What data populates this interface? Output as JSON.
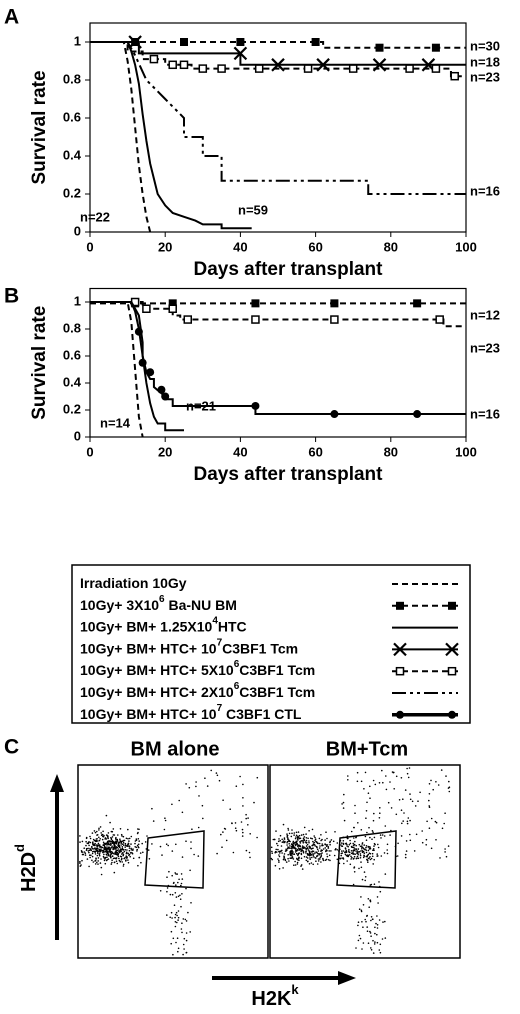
{
  "chart_data": [
    {
      "type": "line",
      "panel": "A",
      "y_label": "Survival rate",
      "x_label": "Days after transplant",
      "color": "#000000",
      "xlim": [
        0,
        100
      ],
      "ylim": [
        0,
        1.1
      ],
      "xticks": [
        0,
        20,
        40,
        60,
        80,
        100
      ],
      "yticks": [
        0,
        0.2,
        0.4,
        0.6,
        0.8,
        1
      ],
      "series": [
        {
          "style": "dash",
          "label": "n=22",
          "x": [
            0,
            9,
            10,
            11,
            12,
            13,
            14,
            15,
            16
          ],
          "values": [
            1,
            1,
            0.9,
            0.75,
            0.55,
            0.35,
            0.2,
            0.08,
            0
          ]
        },
        {
          "style": "dash-square",
          "label": "n=30",
          "x": [
            0,
            62,
            62,
            100
          ],
          "values": [
            1,
            1,
            0.97,
            0.97
          ],
          "markers": {
            "x": [
              12,
              25,
              40,
              60,
              77,
              92
            ],
            "values": [
              1,
              1,
              1,
              1,
              0.97,
              0.97
            ]
          }
        },
        {
          "style": "solid",
          "label": "n=59",
          "x": [
            0,
            10,
            11,
            12,
            13,
            14,
            15,
            16,
            17,
            18,
            20,
            22,
            25,
            28,
            30,
            35,
            35,
            43
          ],
          "values": [
            1,
            1,
            0.95,
            0.88,
            0.78,
            0.62,
            0.48,
            0.36,
            0.28,
            0.2,
            0.14,
            0.1,
            0.08,
            0.06,
            0.04,
            0.04,
            0.02,
            0.02
          ]
        },
        {
          "style": "solid-x",
          "label": "n=18",
          "x": [
            0,
            13,
            13,
            40,
            40,
            100
          ],
          "values": [
            1,
            1,
            0.94,
            0.94,
            0.88,
            0.88
          ],
          "markers": {
            "x": [
              12,
              40,
              50,
              62,
              77,
              90
            ],
            "values": [
              1,
              0.94,
              0.88,
              0.88,
              0.88,
              0.88
            ]
          }
        },
        {
          "style": "dash-open",
          "label": "n=23",
          "x": [
            0,
            10,
            10,
            14,
            14,
            20,
            20,
            27,
            27,
            96,
            96,
            100
          ],
          "values": [
            1,
            1,
            0.95,
            0.95,
            0.91,
            0.91,
            0.88,
            0.88,
            0.86,
            0.86,
            0.82,
            0.82
          ],
          "markers": {
            "x": [
              17,
              22,
              25,
              30,
              35,
              45,
              58,
              70,
              85,
              92,
              97
            ],
            "values": [
              0.91,
              0.88,
              0.88,
              0.86,
              0.86,
              0.86,
              0.86,
              0.86,
              0.86,
              0.86,
              0.82
            ]
          }
        },
        {
          "style": "dashdot",
          "label": "n=16",
          "x": [
            0,
            10,
            12,
            15,
            20,
            25,
            25,
            30,
            30,
            35,
            35,
            74,
            74,
            100
          ],
          "values": [
            1,
            1,
            0.93,
            0.8,
            0.7,
            0.6,
            0.5,
            0.5,
            0.4,
            0.4,
            0.27,
            0.27,
            0.2,
            0.2
          ]
        }
      ]
    },
    {
      "type": "line",
      "panel": "B",
      "y_label": "Survival rate",
      "x_label": "Days after transplant",
      "color": "#000000",
      "xlim": [
        0,
        100
      ],
      "ylim": [
        0,
        1.1
      ],
      "xticks": [
        0,
        20,
        40,
        60,
        80,
        100
      ],
      "yticks": [
        0,
        0.2,
        0.4,
        0.6,
        0.8,
        1
      ],
      "series": [
        {
          "style": "dash",
          "label": "n=14",
          "x": [
            0,
            10,
            11,
            12,
            13,
            14
          ],
          "values": [
            1,
            1,
            0.85,
            0.5,
            0.15,
            0
          ]
        },
        {
          "style": "dash-square",
          "label": "n=12",
          "x": [
            0,
            100
          ],
          "values": [
            0.99,
            0.99
          ],
          "markers": {
            "x": [
              12,
              22,
              44,
              65,
              87
            ],
            "values": [
              0.99,
              0.99,
              0.99,
              0.99,
              0.99
            ]
          }
        },
        {
          "style": "solid",
          "label": "n=21",
          "x": [
            0,
            11,
            12,
            13,
            14,
            15,
            16,
            17,
            18,
            20,
            20,
            25
          ],
          "values": [
            1,
            1,
            0.93,
            0.8,
            0.6,
            0.4,
            0.25,
            0.15,
            0.1,
            0.1,
            0.05,
            0.05
          ]
        },
        {
          "style": "dash-open",
          "label": "n=23",
          "x": [
            0,
            14,
            14,
            22,
            22,
            24,
            24,
            94,
            94,
            100
          ],
          "values": [
            1,
            1,
            0.95,
            0.95,
            0.9,
            0.9,
            0.87,
            0.87,
            0.82,
            0.82
          ],
          "markers": {
            "x": [
              12,
              15,
              22,
              26,
              44,
              65,
              93
            ],
            "values": [
              1,
              0.95,
              0.95,
              0.87,
              0.87,
              0.87,
              0.87
            ]
          }
        },
        {
          "style": "solid-circle",
          "label": "n=16",
          "x": [
            0,
            11,
            13,
            14,
            14,
            15,
            16,
            17,
            17,
            20,
            20,
            22,
            22,
            44,
            44,
            100
          ],
          "values": [
            1,
            1,
            0.9,
            0.7,
            0.6,
            0.48,
            0.43,
            0.43,
            0.37,
            0.3,
            0.28,
            0.28,
            0.23,
            0.23,
            0.17,
            0.17
          ],
          "markers": {
            "x": [
              13,
              14,
              16,
              19,
              20,
              44,
              65,
              87
            ],
            "values": [
              0.78,
              0.55,
              0.48,
              0.35,
              0.3,
              0.23,
              0.17,
              0.17
            ]
          }
        }
      ]
    }
  ],
  "legend": [
    {
      "style": "dash",
      "parts": [
        "Irradiation 10Gy"
      ]
    },
    {
      "style": "dash-square",
      "parts": [
        "10Gy+ 3X10",
        "6",
        " Ba-NU BM"
      ]
    },
    {
      "style": "solid",
      "parts": [
        "10Gy+ BM+ 1.25X10",
        "4",
        "HTC"
      ]
    },
    {
      "style": "solid-x",
      "parts": [
        "10Gy+ BM+ HTC+ 10",
        "7",
        "C3BF1 Tcm"
      ]
    },
    {
      "style": "dash-open",
      "parts": [
        "10Gy+ BM+ HTC+ 5X10",
        "6",
        "C3BF1 Tcm"
      ]
    },
    {
      "style": "dashdot",
      "parts": [
        "10Gy+ BM+ HTC+ 2X10",
        "6",
        "C3BF1 Tcm"
      ]
    },
    {
      "style": "solid-circle",
      "parts": [
        "10Gy+ BM+ HTC+ 10",
        "7",
        " C3BF1 CTL"
      ]
    }
  ],
  "panel_c": {
    "panel": "C",
    "titles": [
      "BM alone",
      "BM+Tcm"
    ],
    "y_label": [
      "H2D",
      "d"
    ],
    "x_label": [
      "H2K",
      "k"
    ]
  }
}
